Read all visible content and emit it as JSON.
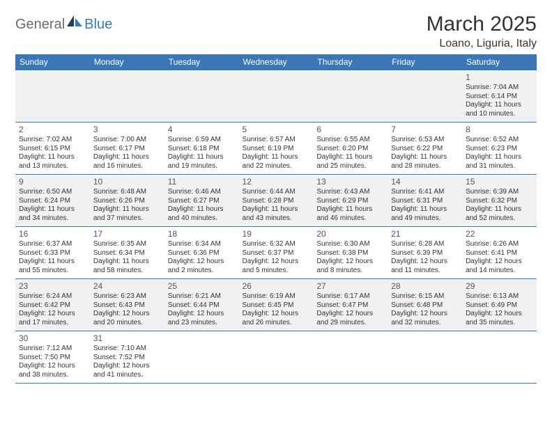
{
  "logo": {
    "part1": "General",
    "part2": "Blue"
  },
  "title": "March 2025",
  "location": "Loano, Liguria, Italy",
  "colors": {
    "header_bg": "#3b77b7",
    "header_fg": "#ffffff",
    "row_alt_bg": "#f1f1f1",
    "border": "#3b77b7",
    "text": "#333333",
    "logo_gray": "#6b6b6b",
    "logo_blue": "#3b77b7"
  },
  "days_of_week": [
    "Sunday",
    "Monday",
    "Tuesday",
    "Wednesday",
    "Thursday",
    "Friday",
    "Saturday"
  ],
  "weeks": [
    [
      null,
      null,
      null,
      null,
      null,
      null,
      {
        "n": "1",
        "sr": "Sunrise: 7:04 AM",
        "ss": "Sunset: 6:14 PM",
        "d1": "Daylight: 11 hours",
        "d2": "and 10 minutes."
      }
    ],
    [
      {
        "n": "2",
        "sr": "Sunrise: 7:02 AM",
        "ss": "Sunset: 6:15 PM",
        "d1": "Daylight: 11 hours",
        "d2": "and 13 minutes."
      },
      {
        "n": "3",
        "sr": "Sunrise: 7:00 AM",
        "ss": "Sunset: 6:17 PM",
        "d1": "Daylight: 11 hours",
        "d2": "and 16 minutes."
      },
      {
        "n": "4",
        "sr": "Sunrise: 6:59 AM",
        "ss": "Sunset: 6:18 PM",
        "d1": "Daylight: 11 hours",
        "d2": "and 19 minutes."
      },
      {
        "n": "5",
        "sr": "Sunrise: 6:57 AM",
        "ss": "Sunset: 6:19 PM",
        "d1": "Daylight: 11 hours",
        "d2": "and 22 minutes."
      },
      {
        "n": "6",
        "sr": "Sunrise: 6:55 AM",
        "ss": "Sunset: 6:20 PM",
        "d1": "Daylight: 11 hours",
        "d2": "and 25 minutes."
      },
      {
        "n": "7",
        "sr": "Sunrise: 6:53 AM",
        "ss": "Sunset: 6:22 PM",
        "d1": "Daylight: 11 hours",
        "d2": "and 28 minutes."
      },
      {
        "n": "8",
        "sr": "Sunrise: 6:52 AM",
        "ss": "Sunset: 6:23 PM",
        "d1": "Daylight: 11 hours",
        "d2": "and 31 minutes."
      }
    ],
    [
      {
        "n": "9",
        "sr": "Sunrise: 6:50 AM",
        "ss": "Sunset: 6:24 PM",
        "d1": "Daylight: 11 hours",
        "d2": "and 34 minutes."
      },
      {
        "n": "10",
        "sr": "Sunrise: 6:48 AM",
        "ss": "Sunset: 6:26 PM",
        "d1": "Daylight: 11 hours",
        "d2": "and 37 minutes."
      },
      {
        "n": "11",
        "sr": "Sunrise: 6:46 AM",
        "ss": "Sunset: 6:27 PM",
        "d1": "Daylight: 11 hours",
        "d2": "and 40 minutes."
      },
      {
        "n": "12",
        "sr": "Sunrise: 6:44 AM",
        "ss": "Sunset: 6:28 PM",
        "d1": "Daylight: 11 hours",
        "d2": "and 43 minutes."
      },
      {
        "n": "13",
        "sr": "Sunrise: 6:43 AM",
        "ss": "Sunset: 6:29 PM",
        "d1": "Daylight: 11 hours",
        "d2": "and 46 minutes."
      },
      {
        "n": "14",
        "sr": "Sunrise: 6:41 AM",
        "ss": "Sunset: 6:31 PM",
        "d1": "Daylight: 11 hours",
        "d2": "and 49 minutes."
      },
      {
        "n": "15",
        "sr": "Sunrise: 6:39 AM",
        "ss": "Sunset: 6:32 PM",
        "d1": "Daylight: 11 hours",
        "d2": "and 52 minutes."
      }
    ],
    [
      {
        "n": "16",
        "sr": "Sunrise: 6:37 AM",
        "ss": "Sunset: 6:33 PM",
        "d1": "Daylight: 11 hours",
        "d2": "and 55 minutes."
      },
      {
        "n": "17",
        "sr": "Sunrise: 6:35 AM",
        "ss": "Sunset: 6:34 PM",
        "d1": "Daylight: 11 hours",
        "d2": "and 58 minutes."
      },
      {
        "n": "18",
        "sr": "Sunrise: 6:34 AM",
        "ss": "Sunset: 6:36 PM",
        "d1": "Daylight: 12 hours",
        "d2": "and 2 minutes."
      },
      {
        "n": "19",
        "sr": "Sunrise: 6:32 AM",
        "ss": "Sunset: 6:37 PM",
        "d1": "Daylight: 12 hours",
        "d2": "and 5 minutes."
      },
      {
        "n": "20",
        "sr": "Sunrise: 6:30 AM",
        "ss": "Sunset: 6:38 PM",
        "d1": "Daylight: 12 hours",
        "d2": "and 8 minutes."
      },
      {
        "n": "21",
        "sr": "Sunrise: 6:28 AM",
        "ss": "Sunset: 6:39 PM",
        "d1": "Daylight: 12 hours",
        "d2": "and 11 minutes."
      },
      {
        "n": "22",
        "sr": "Sunrise: 6:26 AM",
        "ss": "Sunset: 6:41 PM",
        "d1": "Daylight: 12 hours",
        "d2": "and 14 minutes."
      }
    ],
    [
      {
        "n": "23",
        "sr": "Sunrise: 6:24 AM",
        "ss": "Sunset: 6:42 PM",
        "d1": "Daylight: 12 hours",
        "d2": "and 17 minutes."
      },
      {
        "n": "24",
        "sr": "Sunrise: 6:23 AM",
        "ss": "Sunset: 6:43 PM",
        "d1": "Daylight: 12 hours",
        "d2": "and 20 minutes."
      },
      {
        "n": "25",
        "sr": "Sunrise: 6:21 AM",
        "ss": "Sunset: 6:44 PM",
        "d1": "Daylight: 12 hours",
        "d2": "and 23 minutes."
      },
      {
        "n": "26",
        "sr": "Sunrise: 6:19 AM",
        "ss": "Sunset: 6:45 PM",
        "d1": "Daylight: 12 hours",
        "d2": "and 26 minutes."
      },
      {
        "n": "27",
        "sr": "Sunrise: 6:17 AM",
        "ss": "Sunset: 6:47 PM",
        "d1": "Daylight: 12 hours",
        "d2": "and 29 minutes."
      },
      {
        "n": "28",
        "sr": "Sunrise: 6:15 AM",
        "ss": "Sunset: 6:48 PM",
        "d1": "Daylight: 12 hours",
        "d2": "and 32 minutes."
      },
      {
        "n": "29",
        "sr": "Sunrise: 6:13 AM",
        "ss": "Sunset: 6:49 PM",
        "d1": "Daylight: 12 hours",
        "d2": "and 35 minutes."
      }
    ],
    [
      {
        "n": "30",
        "sr": "Sunrise: 7:12 AM",
        "ss": "Sunset: 7:50 PM",
        "d1": "Daylight: 12 hours",
        "d2": "and 38 minutes."
      },
      {
        "n": "31",
        "sr": "Sunrise: 7:10 AM",
        "ss": "Sunset: 7:52 PM",
        "d1": "Daylight: 12 hours",
        "d2": "and 41 minutes."
      },
      null,
      null,
      null,
      null,
      null
    ]
  ]
}
